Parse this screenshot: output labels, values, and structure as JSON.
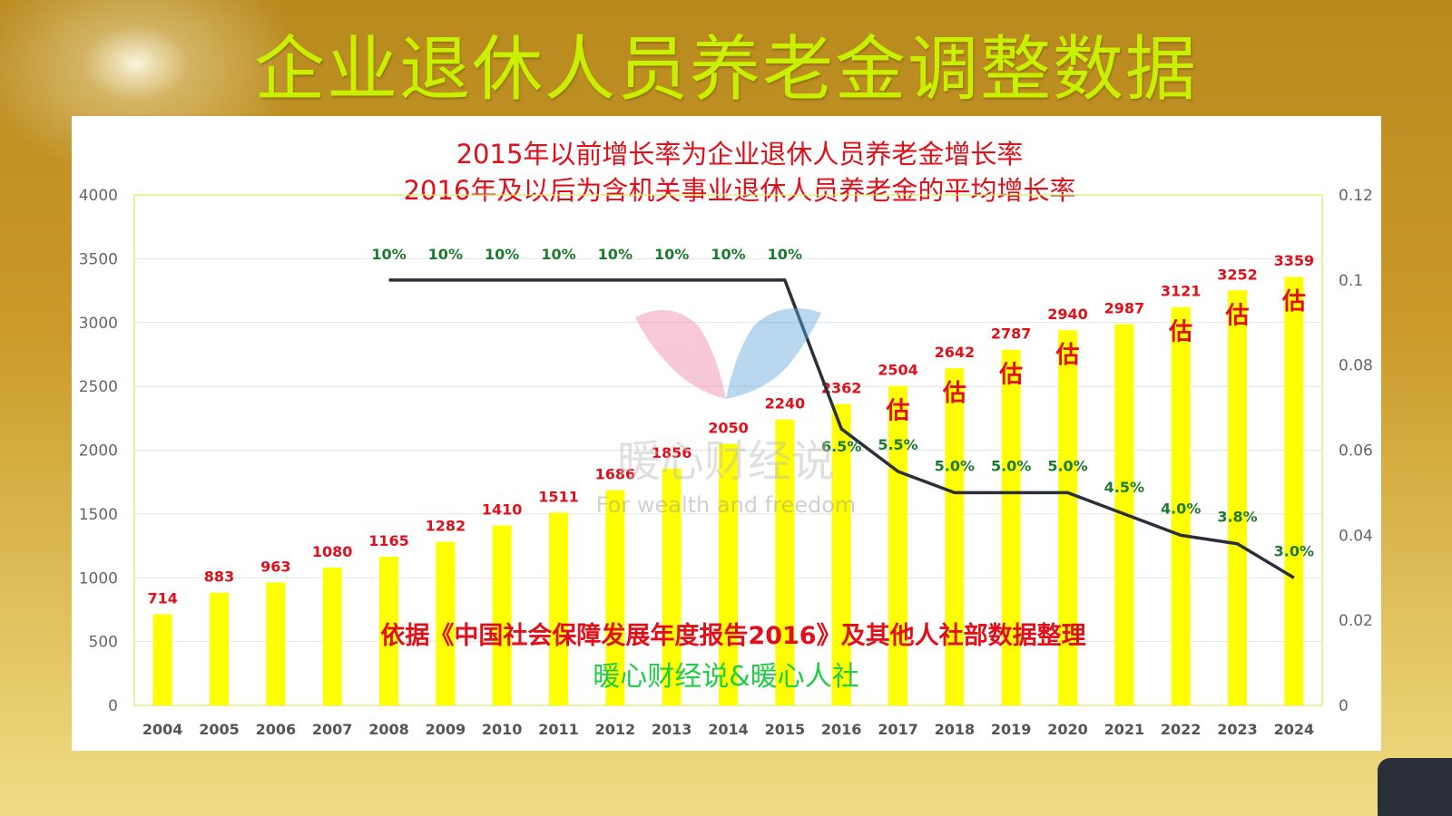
{
  "page_title": "企业退休人员养老金调整数据",
  "chart_data": {
    "type": "bar+line",
    "subtitle_lines": [
      "2015年以前增长率为企业退休人员养老金增长率",
      "2016年及以后为含机关事业退休人员养老金的平均增长率"
    ],
    "categories": [
      "2004",
      "2005",
      "2006",
      "2007",
      "2008",
      "2009",
      "2010",
      "2011",
      "2012",
      "2013",
      "2014",
      "2015",
      "2016",
      "2017",
      "2018",
      "2019",
      "2020",
      "2021",
      "2022",
      "2023",
      "2024"
    ],
    "bar_values": [
      714,
      883,
      963,
      1080,
      1165,
      1282,
      1410,
      1511,
      1686,
      1856,
      2050,
      2240,
      2362,
      2504,
      2642,
      2787,
      2940,
      2987,
      3121,
      3252,
      3359
    ],
    "estimate_mark": "估",
    "estimated": [
      false,
      false,
      false,
      false,
      false,
      false,
      false,
      false,
      false,
      false,
      false,
      false,
      false,
      true,
      true,
      true,
      true,
      false,
      true,
      true,
      true
    ],
    "line_values": [
      null,
      null,
      null,
      null,
      0.1,
      0.1,
      0.1,
      0.1,
      0.1,
      0.1,
      0.1,
      0.1,
      0.065,
      0.055,
      0.05,
      0.05,
      0.05,
      0.045,
      0.04,
      0.038,
      0.03
    ],
    "line_labels": [
      null,
      null,
      null,
      null,
      "10%",
      "10%",
      "10%",
      "10%",
      "10%",
      "10%",
      "10%",
      "10%",
      "6.5%",
      "5.5%",
      "5.0%",
      "5.0%",
      "5.0%",
      "4.5%",
      "4.0%",
      "3.8%",
      "3.0%"
    ],
    "y_left": {
      "range": [
        0,
        4000
      ],
      "ticks": [
        "0",
        "500",
        "1000",
        "1500",
        "2000",
        "2500",
        "3000",
        "3500",
        "4000"
      ]
    },
    "y_right": {
      "range": [
        0,
        0.12
      ],
      "ticks": [
        "0",
        "0.02",
        "0.04",
        "0.06",
        "0.08",
        "0.1",
        "0.12"
      ]
    },
    "grid": true,
    "source_note": "依据《中国社会保障发展年度报告2016》及其他人社部数据整理",
    "credit": "暖心财经说&暖心人社",
    "colors": {
      "bar": "#ffff00",
      "line": "#2b2f3a",
      "bar_label": "#e0101a",
      "line_label": "#1e7a2e",
      "subtitle": "#e0101a",
      "title": "#c8f000",
      "credit": "#22cc44"
    }
  },
  "watermark": {
    "cn": "暖心财经说",
    "en": "For wealth and freedom"
  }
}
